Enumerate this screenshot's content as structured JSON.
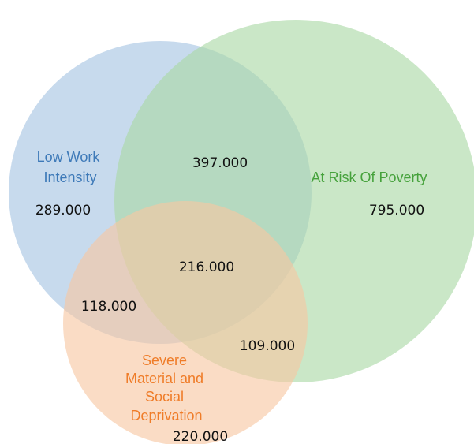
{
  "sets": {
    "low_work_intensity": {
      "label_lines": [
        "Low Work",
        "Intensity"
      ],
      "color": "#a4c4e2",
      "label_color": "#3d79b8"
    },
    "at_risk_of_poverty": {
      "label_lines": [
        "At Risk Of Poverty"
      ],
      "color": "#a9d8a4",
      "label_color": "#46a23c"
    },
    "severe_deprivation": {
      "label_lines": [
        "Severe",
        "Material and",
        "Social",
        "Deprivation"
      ],
      "color": "#f7c7a2",
      "label_color": "#ef7c28"
    }
  },
  "counts": {
    "low_work_only": "289.000",
    "poverty_only": "795.000",
    "deprivation_only": "220.000",
    "low_work_and_poverty": "397.000",
    "low_work_and_deprivation": "118.000",
    "poverty_and_deprivation": "109.000",
    "all_three": "216.000"
  }
}
